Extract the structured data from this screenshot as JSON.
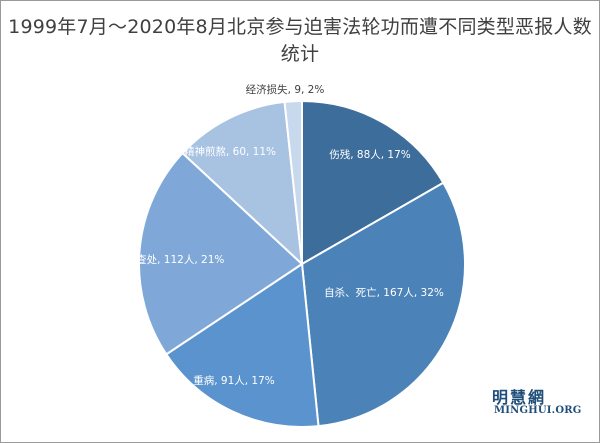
{
  "chart_data": {
    "type": "pie",
    "title": "1999年7月～2020年8月北京参与迫害法轮功而遭不同类型恶报人数统计",
    "slices": [
      {
        "label": "伤残, 88人, 17%",
        "value": 88,
        "color": "#3d6d9a"
      },
      {
        "label": "自杀、死亡, 167人, 32%",
        "value": 167,
        "color": "#4b82b8"
      },
      {
        "label": "重病, 91人, 17%",
        "value": 91,
        "color": "#5a93cd"
      },
      {
        "label": "被查处, 112人, 21%",
        "value": 112,
        "color": "#7fa8d8"
      },
      {
        "label": "精神煎熬, 60, 11%",
        "value": 60,
        "color": "#a8c2e2"
      },
      {
        "label": "经济损失, 9, 2%",
        "value": 9,
        "color": "#c9d9ed"
      }
    ],
    "start_angle_deg": 0,
    "direction": "clockwise"
  },
  "watermark": {
    "cn": "明慧網",
    "en": "MINGHUI.ORG"
  }
}
